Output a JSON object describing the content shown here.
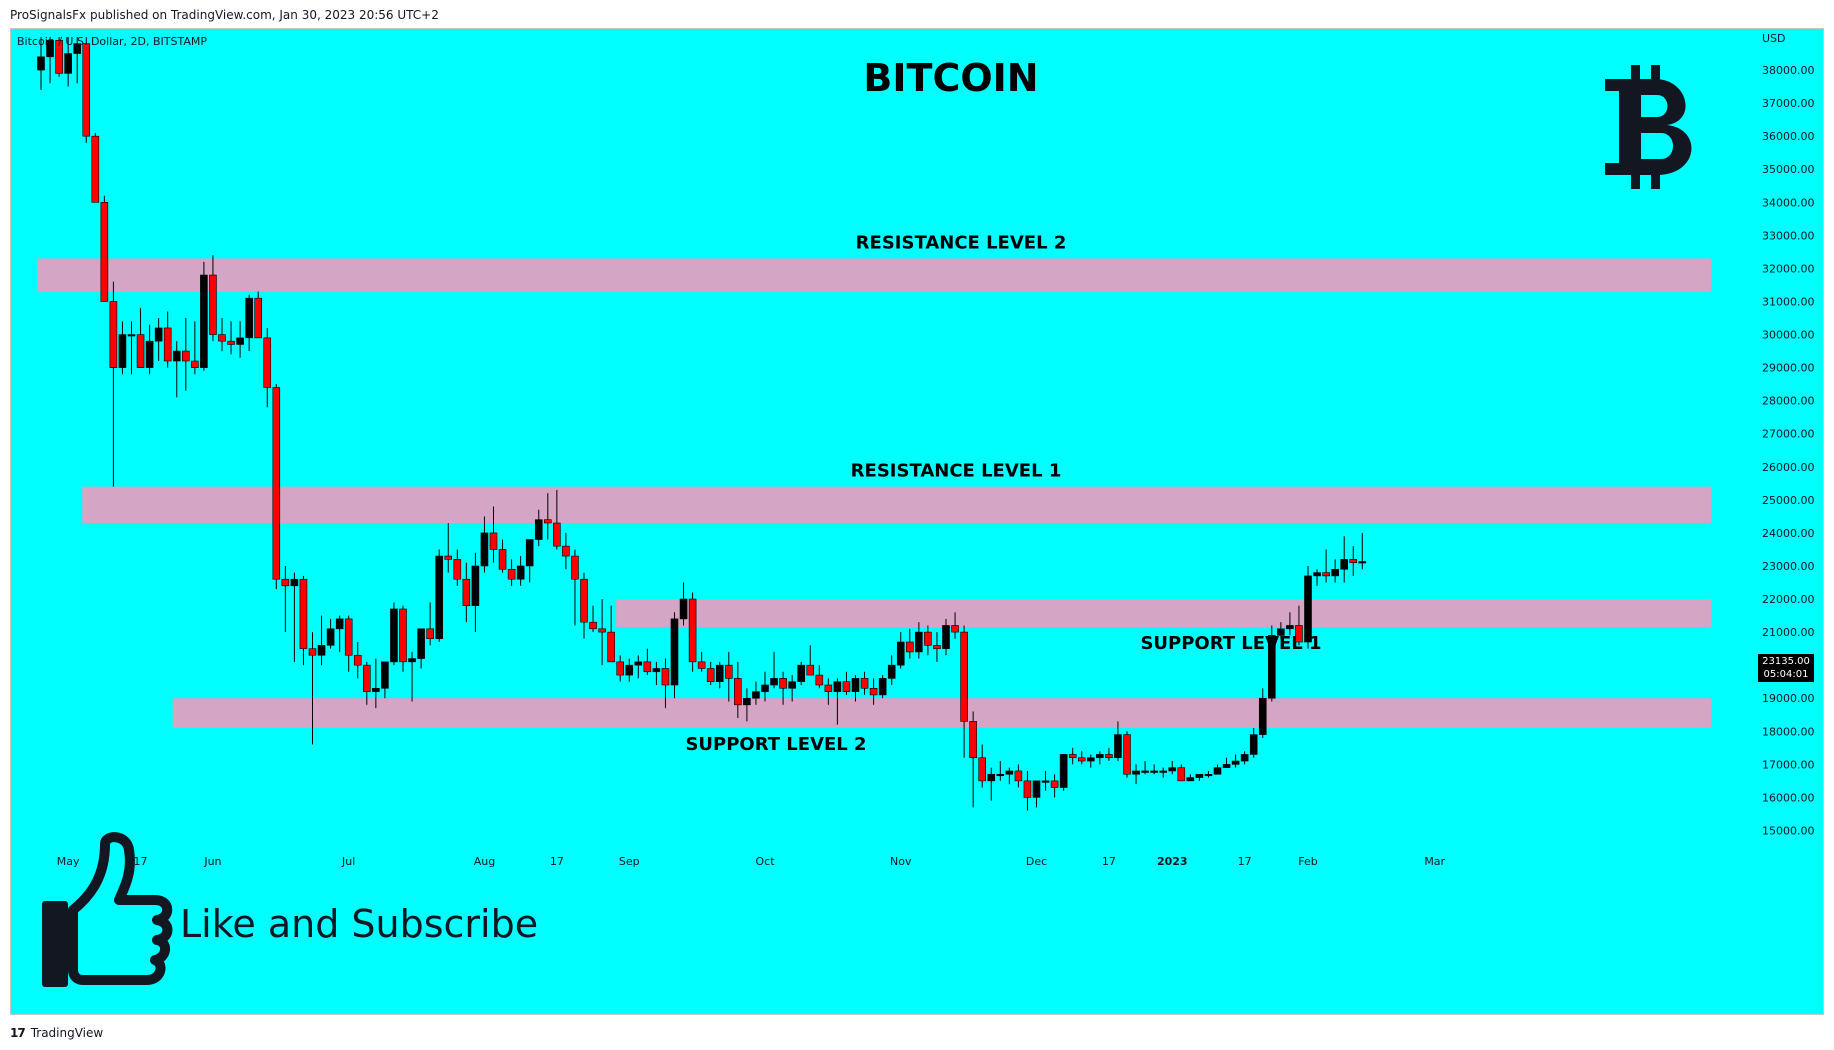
{
  "header": {
    "published_text": "ProSignalsFx published on TradingView.com, Jan 30, 2023 20:56 UTC+2",
    "symbol_label": "Bitcoin / U.S. Dollar, 2D, BITSTAMP"
  },
  "footer": {
    "logo_text": "17",
    "brand_text": "TradingView"
  },
  "colors": {
    "background": "#00FFFF",
    "up_candle": "#000000",
    "down_candle": "#FF0000",
    "zone": "#D4A5C4"
  },
  "overlay": {
    "like_text": "Like and Subscribe",
    "bitcoin_logo": "bitcoin-icon",
    "thumb_icon": "thumbs-up-icon"
  },
  "price_tag": {
    "price": "23135.00",
    "countdown": "05:04:01"
  },
  "chart_data": {
    "type": "candlestick",
    "title": "BITCOIN",
    "ylabel": "USD",
    "ylim": [
      14500,
      39000
    ],
    "yticks": [
      15000,
      16000,
      17000,
      18000,
      19000,
      20000,
      21000,
      22000,
      23000,
      24000,
      25000,
      26000,
      27000,
      28000,
      29000,
      30000,
      31000,
      32000,
      33000,
      34000,
      35000,
      36000,
      37000,
      38000
    ],
    "x_labels": [
      {
        "label": "May",
        "index": 3,
        "bold": false
      },
      {
        "label": "17",
        "index": 11,
        "bold": false
      },
      {
        "label": "Jun",
        "index": 19,
        "bold": false
      },
      {
        "label": "Jul",
        "index": 34,
        "bold": false
      },
      {
        "label": "Aug",
        "index": 49,
        "bold": false
      },
      {
        "label": "17",
        "index": 57,
        "bold": false
      },
      {
        "label": "Sep",
        "index": 65,
        "bold": false
      },
      {
        "label": "Oct",
        "index": 80,
        "bold": false
      },
      {
        "label": "Nov",
        "index": 95,
        "bold": false
      },
      {
        "label": "Dec",
        "index": 110,
        "bold": false
      },
      {
        "label": "17",
        "index": 118,
        "bold": false
      },
      {
        "label": "2023",
        "index": 125,
        "bold": true
      },
      {
        "label": "17",
        "index": 133,
        "bold": false
      },
      {
        "label": "Feb",
        "index": 140,
        "bold": false
      },
      {
        "label": "Mar",
        "index": 154,
        "bold": false
      }
    ],
    "zones": [
      {
        "name": "RESISTANCE LEVEL 2",
        "low": 31300,
        "high": 32300,
        "start_index": 0,
        "label_side": "above"
      },
      {
        "name": "RESISTANCE LEVEL 1",
        "low": 24300,
        "high": 25400,
        "start_index": 5,
        "label_side": "above"
      },
      {
        "name": "SUPPORT LEVEL 1",
        "low": 21150,
        "high": 22000,
        "start_index": 64,
        "label_side": "below"
      },
      {
        "name": "SUPPORT LEVEL 2",
        "low": 18100,
        "high": 19000,
        "start_index": 15,
        "label_side": "below"
      }
    ],
    "candles": [
      [
        38000,
        39000,
        37400,
        38400
      ],
      [
        38400,
        39000,
        37600,
        38900
      ],
      [
        38900,
        39000,
        37800,
        37900
      ],
      [
        37900,
        39000,
        37500,
        38500
      ],
      [
        38500,
        39000,
        37600,
        38800
      ],
      [
        38800,
        39000,
        35800,
        36000
      ],
      [
        36000,
        36100,
        34000,
        34000
      ],
      [
        34000,
        34200,
        31000,
        31000
      ],
      [
        31000,
        31600,
        25400,
        29000
      ],
      [
        29000,
        30400,
        28800,
        30000
      ],
      [
        30000,
        30400,
        28800,
        30000
      ],
      [
        30000,
        30800,
        29000,
        29000
      ],
      [
        29000,
        30300,
        28800,
        29800
      ],
      [
        29800,
        30500,
        29200,
        30200
      ],
      [
        30200,
        30700,
        29000,
        29200
      ],
      [
        29200,
        29800,
        28100,
        29500
      ],
      [
        29500,
        30500,
        28300,
        29200
      ],
      [
        29200,
        30400,
        28800,
        29000
      ],
      [
        29000,
        32200,
        28900,
        31800
      ],
      [
        31800,
        32400,
        29800,
        30000
      ],
      [
        30000,
        30500,
        29500,
        29800
      ],
      [
        29800,
        30400,
        29400,
        29700
      ],
      [
        29700,
        30400,
        29300,
        29900
      ],
      [
        29900,
        31200,
        29500,
        31100
      ],
      [
        31100,
        31300,
        29900,
        29900
      ],
      [
        29900,
        30200,
        27800,
        28400
      ],
      [
        28400,
        28500,
        22300,
        22600
      ],
      [
        22600,
        23000,
        21000,
        22400
      ],
      [
        22400,
        22800,
        20100,
        22600
      ],
      [
        22600,
        22700,
        20000,
        20500
      ],
      [
        20500,
        21000,
        17600,
        20300
      ],
      [
        20300,
        21500,
        20000,
        20600
      ],
      [
        20600,
        21400,
        20500,
        21100
      ],
      [
        21100,
        21500,
        20400,
        21400
      ],
      [
        21400,
        21500,
        19800,
        20300
      ],
      [
        20300,
        20700,
        19600,
        20000
      ],
      [
        20000,
        20100,
        18800,
        19200
      ],
      [
        19200,
        20200,
        18700,
        19300
      ],
      [
        19300,
        20100,
        19000,
        20100
      ],
      [
        20100,
        21900,
        20000,
        21700
      ],
      [
        21700,
        21800,
        19800,
        20100
      ],
      [
        20100,
        20400,
        18900,
        20200
      ],
      [
        20200,
        21100,
        19900,
        21100
      ],
      [
        21100,
        21900,
        20600,
        20800
      ],
      [
        20800,
        23500,
        20700,
        23300
      ],
      [
        23300,
        24300,
        22800,
        23200
      ],
      [
        23200,
        23500,
        22400,
        22600
      ],
      [
        22600,
        23100,
        21300,
        21800
      ],
      [
        21800,
        23400,
        21000,
        23000
      ],
      [
        23000,
        24500,
        22800,
        24000
      ],
      [
        24000,
        24800,
        23100,
        23500
      ],
      [
        23500,
        23800,
        22800,
        22900
      ],
      [
        22900,
        23200,
        22400,
        22600
      ],
      [
        22600,
        23300,
        22400,
        23000
      ],
      [
        23000,
        23700,
        22500,
        23800
      ],
      [
        23800,
        24700,
        23600,
        24400
      ],
      [
        24400,
        25200,
        23800,
        24300
      ],
      [
        24300,
        25300,
        23500,
        23600
      ],
      [
        23600,
        24000,
        22900,
        23300
      ],
      [
        23300,
        23500,
        21200,
        22600
      ],
      [
        22600,
        22800,
        20800,
        21300
      ],
      [
        21300,
        21800,
        21000,
        21100
      ],
      [
        21100,
        22000,
        20000,
        21000
      ],
      [
        21000,
        21800,
        20100,
        20100
      ],
      [
        20100,
        20300,
        19500,
        19700
      ],
      [
        19700,
        20200,
        19500,
        20000
      ],
      [
        20000,
        20300,
        19600,
        20100
      ],
      [
        20100,
        20500,
        19700,
        19800
      ],
      [
        19800,
        20100,
        19400,
        19900
      ],
      [
        19900,
        20200,
        18700,
        19400
      ],
      [
        19400,
        21600,
        19000,
        21400
      ],
      [
        21400,
        22500,
        21200,
        22000
      ],
      [
        22000,
        22200,
        19800,
        20100
      ],
      [
        20100,
        20400,
        19800,
        19900
      ],
      [
        19900,
        20100,
        19400,
        19500
      ],
      [
        19500,
        20100,
        19300,
        20000
      ],
      [
        20000,
        20400,
        18900,
        19600
      ],
      [
        19600,
        20100,
        18400,
        18800
      ],
      [
        18800,
        19300,
        18300,
        19000
      ],
      [
        19000,
        19500,
        18800,
        19200
      ],
      [
        19200,
        19800,
        18900,
        19400
      ],
      [
        19400,
        20400,
        19300,
        19600
      ],
      [
        19600,
        19800,
        18800,
        19300
      ],
      [
        19300,
        19700,
        18900,
        19500
      ],
      [
        19500,
        20100,
        19400,
        20000
      ],
      [
        20000,
        20600,
        19800,
        19700
      ],
      [
        19700,
        20000,
        19300,
        19400
      ],
      [
        19400,
        19600,
        18800,
        19200
      ],
      [
        19200,
        19600,
        18200,
        19500
      ],
      [
        19500,
        19800,
        19100,
        19200
      ],
      [
        19200,
        19700,
        18900,
        19600
      ],
      [
        19600,
        19800,
        19100,
        19300
      ],
      [
        19300,
        19600,
        18800,
        19100
      ],
      [
        19100,
        19700,
        19000,
        19600
      ],
      [
        19600,
        20300,
        19400,
        20000
      ],
      [
        20000,
        21000,
        19900,
        20700
      ],
      [
        20700,
        21100,
        20200,
        20400
      ],
      [
        20400,
        21300,
        20200,
        21000
      ],
      [
        21000,
        21200,
        20300,
        20600
      ],
      [
        20600,
        21000,
        20100,
        20500
      ],
      [
        20500,
        21400,
        20300,
        21200
      ],
      [
        21200,
        21600,
        20800,
        21000
      ],
      [
        21000,
        21200,
        17200,
        18300
      ],
      [
        18300,
        18600,
        15700,
        17200
      ],
      [
        17200,
        17600,
        16300,
        16500
      ],
      [
        16500,
        16900,
        15900,
        16700
      ],
      [
        16700,
        17100,
        16500,
        16700
      ],
      [
        16700,
        16900,
        16400,
        16800
      ],
      [
        16800,
        17000,
        16300,
        16500
      ],
      [
        16500,
        16800,
        15600,
        16000
      ],
      [
        16000,
        16400,
        15700,
        16500
      ],
      [
        16500,
        16800,
        16200,
        16500
      ],
      [
        16500,
        16700,
        16000,
        16300
      ],
      [
        16300,
        17300,
        16200,
        17300
      ],
      [
        17300,
        17500,
        17000,
        17200
      ],
      [
        17200,
        17400,
        17000,
        17100
      ],
      [
        17100,
        17300,
        16900,
        17200
      ],
      [
        17200,
        17400,
        17000,
        17300
      ],
      [
        17300,
        17500,
        17100,
        17200
      ],
      [
        17200,
        18300,
        17100,
        17900
      ],
      [
        17900,
        18000,
        16600,
        16700
      ],
      [
        16700,
        17000,
        16400,
        16800
      ],
      [
        16800,
        17100,
        16700,
        16800
      ],
      [
        16800,
        17000,
        16700,
        16800
      ],
      [
        16800,
        16900,
        16600,
        16800
      ],
      [
        16800,
        17100,
        16700,
        16900
      ],
      [
        16900,
        17000,
        16600,
        16500
      ],
      [
        16500,
        16700,
        16500,
        16600
      ],
      [
        16600,
        16700,
        16500,
        16700
      ],
      [
        16700,
        16800,
        16600,
        16700
      ],
      [
        16700,
        17000,
        16700,
        16900
      ],
      [
        16900,
        17200,
        16900,
        17000
      ],
      [
        17000,
        17300,
        16900,
        17100
      ],
      [
        17100,
        17400,
        17000,
        17300
      ],
      [
        17300,
        18100,
        17200,
        17900
      ],
      [
        17900,
        19300,
        17800,
        19000
      ],
      [
        19000,
        21200,
        18900,
        20900
      ],
      [
        20900,
        21300,
        20800,
        21100
      ],
      [
        21100,
        21600,
        20900,
        21200
      ],
      [
        21200,
        21800,
        20600,
        20700
      ],
      [
        20700,
        23000,
        20500,
        22700
      ],
      [
        22700,
        22900,
        22400,
        22800
      ],
      [
        22800,
        23500,
        22500,
        22700
      ],
      [
        22700,
        23200,
        22500,
        22900
      ],
      [
        22900,
        23900,
        22500,
        23200
      ],
      [
        23200,
        23600,
        22700,
        23100
      ],
      [
        23100,
        24000,
        22900,
        23135
      ]
    ]
  }
}
